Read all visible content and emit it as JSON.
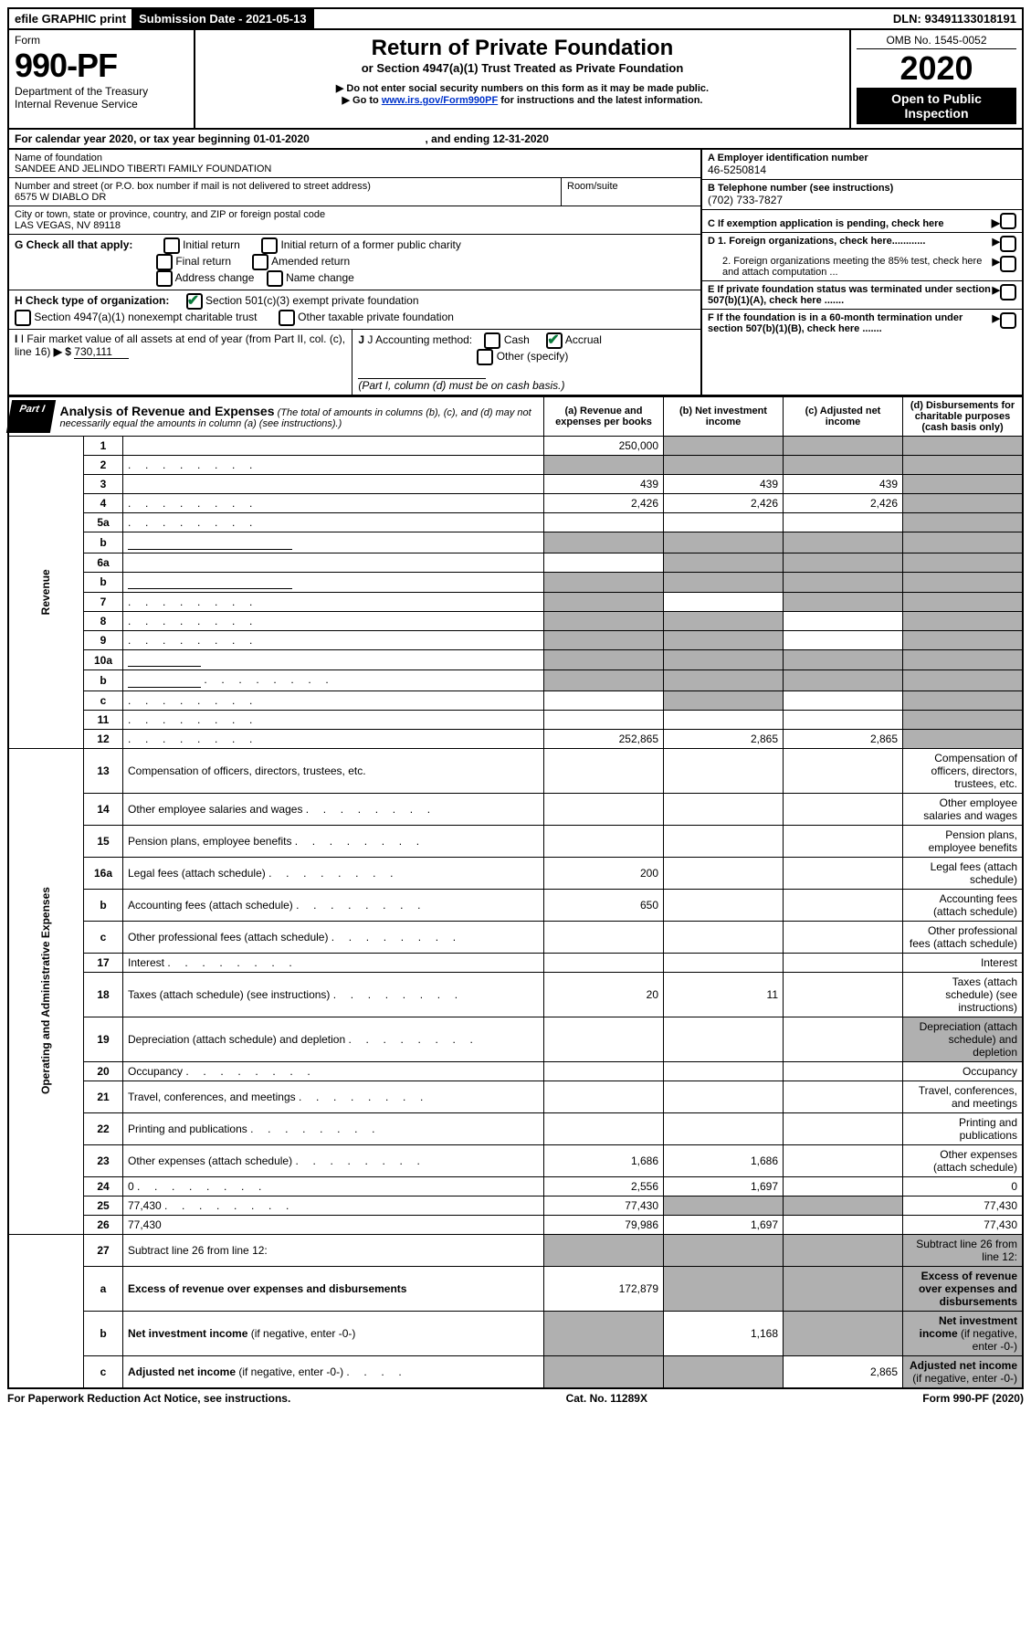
{
  "topbar": {
    "efile": "efile GRAPHIC print",
    "submission": "Submission Date - 2021-05-13",
    "dln": "DLN: 93491133018191"
  },
  "header": {
    "form_label": "Form",
    "form_number": "990-PF",
    "dept": "Department of the Treasury",
    "irs": "Internal Revenue Service",
    "title": "Return of Private Foundation",
    "subtitle": "or Section 4947(a)(1) Trust Treated as Private Foundation",
    "note1": "▶ Do not enter social security numbers on this form as it may be made public.",
    "note2_pre": "▶ Go to ",
    "note2_link": "www.irs.gov/Form990PF",
    "note2_post": " for instructions and the latest information.",
    "omb": "OMB No. 1545-0052",
    "year": "2020",
    "open_public": "Open to Public Inspection"
  },
  "calendar": {
    "line": "For calendar year 2020, or tax year beginning 01-01-2020",
    "ending": ", and ending 12-31-2020"
  },
  "id": {
    "name_label": "Name of foundation",
    "name": "SANDEE AND JELINDO TIBERTI FAMILY FOUNDATION",
    "addr_label": "Number and street (or P.O. box number if mail is not delivered to street address)",
    "addr": "6575 W DIABLO DR",
    "room_label": "Room/suite",
    "city_label": "City or town, state or province, country, and ZIP or foreign postal code",
    "city": "LAS VEGAS, NV  89118",
    "a_label": "A Employer identification number",
    "ein": "46-5250814",
    "b_label": "B Telephone number (see instructions)",
    "phone": "(702) 733-7827",
    "c_label": "C If exemption application is pending, check here",
    "d1": "D 1. Foreign organizations, check here............",
    "d2": "2. Foreign organizations meeting the 85% test, check here and attach computation ...",
    "e": "E  If private foundation status was terminated under section 507(b)(1)(A), check here .......",
    "f": "F  If the foundation is in a 60-month termination under section 507(b)(1)(B), check here ......."
  },
  "g": {
    "label": "G Check all that apply:",
    "opts": [
      "Initial return",
      "Initial return of a former public charity",
      "Final return",
      "Amended return",
      "Address change",
      "Name change"
    ]
  },
  "h": {
    "label": "H Check type of organization:",
    "opt1": "Section 501(c)(3) exempt private foundation",
    "opt2": "Section 4947(a)(1) nonexempt charitable trust",
    "opt3": "Other taxable private foundation"
  },
  "i": {
    "label": "I Fair market value of all assets at end of year (from Part II, col. (c), line 16)",
    "arrow": "▶ $",
    "value": "730,111"
  },
  "j": {
    "label": "J Accounting method:",
    "cash": "Cash",
    "accrual": "Accrual",
    "other": "Other (specify)",
    "note": "(Part I, column (d) must be on cash basis.)"
  },
  "part1": {
    "label": "Part I",
    "title": "Analysis of Revenue and Expenses",
    "subtitle": "(The total of amounts in columns (b), (c), and (d) may not necessarily equal the amounts in column (a) (see instructions).)",
    "col_a": "(a)   Revenue and expenses per books",
    "col_b": "(b)  Net investment income",
    "col_c": "(c)  Adjusted net income",
    "col_d": "(d)  Disbursements for charitable purposes (cash basis only)"
  },
  "sections": {
    "revenue": "Revenue",
    "expenses": "Operating and Administrative Expenses"
  },
  "rows": [
    {
      "n": "1",
      "d": "",
      "a": "250,000",
      "b": "",
      "c": "",
      "sb": true,
      "sc": true,
      "sd": true
    },
    {
      "n": "2",
      "d": "",
      "dots": true,
      "a": "",
      "b": "",
      "c": "",
      "sa": true,
      "sb": true,
      "sc": true,
      "sd": true
    },
    {
      "n": "3",
      "d": "",
      "a": "439",
      "b": "439",
      "c": "439",
      "sd": true
    },
    {
      "n": "4",
      "d": "",
      "dots": true,
      "a": "2,426",
      "b": "2,426",
      "c": "2,426",
      "sd": true
    },
    {
      "n": "5a",
      "d": "",
      "dots": true,
      "a": "",
      "b": "",
      "c": "",
      "sd": true
    },
    {
      "n": "b",
      "d": "",
      "inline": true,
      "a": "",
      "b": "",
      "c": "",
      "sa": true,
      "sb": true,
      "sc": true,
      "sd": true
    },
    {
      "n": "6a",
      "d": "",
      "a": "",
      "b": "",
      "c": "",
      "sb": true,
      "sc": true,
      "sd": true
    },
    {
      "n": "b",
      "d": "",
      "inline": true,
      "a": "",
      "b": "",
      "c": "",
      "sa": true,
      "sb": true,
      "sc": true,
      "sd": true
    },
    {
      "n": "7",
      "d": "",
      "dots": true,
      "a": "",
      "b": "",
      "c": "",
      "sa": true,
      "sc": true,
      "sd": true
    },
    {
      "n": "8",
      "d": "",
      "dots": true,
      "a": "",
      "b": "",
      "c": "",
      "sa": true,
      "sb": true,
      "sd": true
    },
    {
      "n": "9",
      "d": "",
      "dots": true,
      "a": "",
      "b": "",
      "c": "",
      "sa": true,
      "sb": true,
      "sd": true
    },
    {
      "n": "10a",
      "d": "",
      "inline_short": true,
      "a": "",
      "b": "",
      "c": "",
      "sa": true,
      "sb": true,
      "sc": true,
      "sd": true
    },
    {
      "n": "b",
      "d": "",
      "dots": true,
      "inline_short": true,
      "a": "",
      "b": "",
      "c": "",
      "sa": true,
      "sb": true,
      "sc": true,
      "sd": true
    },
    {
      "n": "c",
      "d": "",
      "dots": true,
      "a": "",
      "b": "",
      "c": "",
      "sb": true,
      "sd": true
    },
    {
      "n": "11",
      "d": "",
      "dots": true,
      "a": "",
      "b": "",
      "c": "",
      "sd": true
    },
    {
      "n": "12",
      "d": "",
      "dots": true,
      "a": "252,865",
      "b": "2,865",
      "c": "2,865",
      "sd": true
    }
  ],
  "exp_rows": [
    {
      "n": "13",
      "d": "Compensation of officers, directors, trustees, etc."
    },
    {
      "n": "14",
      "d": "Other employee salaries and wages",
      "dots": true
    },
    {
      "n": "15",
      "d": "Pension plans, employee benefits",
      "dots": true
    },
    {
      "n": "16a",
      "d": "Legal fees (attach schedule)",
      "dots": true,
      "a": "200"
    },
    {
      "n": "b",
      "d": "Accounting fees (attach schedule)",
      "dots": true,
      "a": "650"
    },
    {
      "n": "c",
      "d": "Other professional fees (attach schedule)",
      "dots": true
    },
    {
      "n": "17",
      "d": "Interest",
      "dots": true
    },
    {
      "n": "18",
      "d": "Taxes (attach schedule) (see instructions)",
      "dots": true,
      "a": "20",
      "b": "11"
    },
    {
      "n": "19",
      "d": "Depreciation (attach schedule) and depletion",
      "dots": true,
      "sd": true
    },
    {
      "n": "20",
      "d": "Occupancy",
      "dots": true
    },
    {
      "n": "21",
      "d": "Travel, conferences, and meetings",
      "dots": true
    },
    {
      "n": "22",
      "d": "Printing and publications",
      "dots": true
    },
    {
      "n": "23",
      "d": "Other expenses (attach schedule)",
      "dots": true,
      "a": "1,686",
      "b": "1,686"
    },
    {
      "n": "24",
      "d": "0",
      "dots": true,
      "a": "2,556",
      "b": "1,697"
    },
    {
      "n": "25",
      "d": "77,430",
      "dots": true,
      "a": "77,430",
      "sb": true,
      "sc": true
    },
    {
      "n": "26",
      "d": "77,430",
      "a": "79,986",
      "b": "1,697"
    }
  ],
  "bottom_rows": [
    {
      "n": "27",
      "d": "Subtract line 26 from line 12:",
      "sa": true,
      "sb": true,
      "sc": true,
      "sd": true
    },
    {
      "n": "a",
      "d": "<b>Excess of revenue over expenses and disbursements</b>",
      "a": "172,879",
      "sb": true,
      "sc": true,
      "sd": true
    },
    {
      "n": "b",
      "d": "<b>Net investment income</b> (if negative, enter -0-)",
      "sa": true,
      "b": "1,168",
      "sc": true,
      "sd": true
    },
    {
      "n": "c",
      "d": "<b>Adjusted net income</b> (if negative, enter -0-)",
      "dots": true,
      "sa": true,
      "sb": true,
      "c": "2,865",
      "sd": true
    }
  ],
  "footer": {
    "left": "For Paperwork Reduction Act Notice, see instructions.",
    "mid": "Cat. No. 11289X",
    "right": "Form 990-PF (2020)"
  }
}
